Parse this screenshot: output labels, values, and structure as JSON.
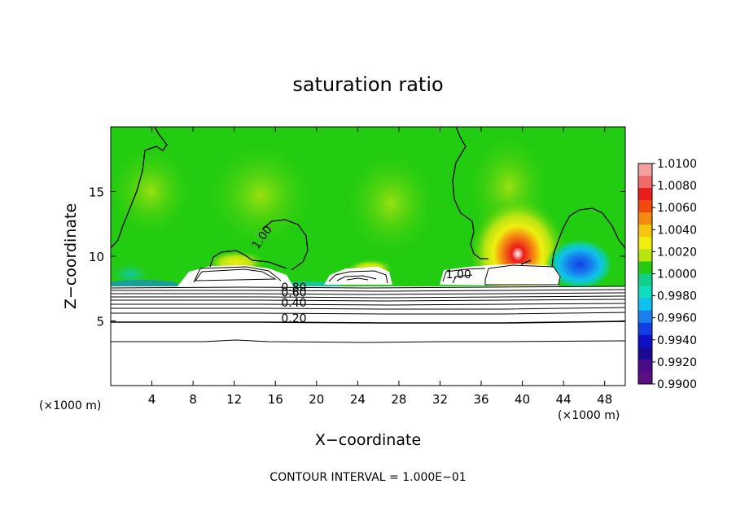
{
  "chart_data": {
    "type": "heatmap",
    "title": "saturation ratio",
    "xlabel": "X−coordinate",
    "ylabel": "Z−coordinate",
    "x_unit_left": "(×1000 m)",
    "x_unit_right": "(×1000 m)",
    "xlim": [
      0,
      50
    ],
    "ylim": [
      0,
      20
    ],
    "x_ticks": [
      4,
      8,
      12,
      16,
      20,
      24,
      28,
      32,
      36,
      40,
      44,
      48
    ],
    "y_ticks": [
      5,
      10,
      15
    ],
    "footer": "CONTOUR INTERVAL = 1.000E−01",
    "colorbar": {
      "ticks": [
        "1.0100",
        "1.0080",
        "1.0060",
        "1.0040",
        "1.0020",
        "1.0000",
        "0.9980",
        "0.9960",
        "0.9940",
        "0.9920",
        "0.9900"
      ],
      "colors": [
        "#f2a0a0",
        "#f06a6a",
        "#ea1c1c",
        "#f04a10",
        "#f58a10",
        "#f5c810",
        "#f0ee10",
        "#b8e410",
        "#22cc10",
        "#10d08a",
        "#10dcc0",
        "#10c0ee",
        "#1880ec",
        "#1040e4",
        "#1010c8",
        "#1a0a96",
        "#4a0a8a",
        "#5a1080"
      ]
    },
    "contour_labels": [
      {
        "text": "1.00",
        "x": 15.0,
        "y": 11.3
      },
      {
        "text": "1.00",
        "x": 33.8,
        "y": 8.3
      },
      {
        "text": "0.80",
        "x": 17.8,
        "y": 7.3
      },
      {
        "text": "0.60",
        "x": 17.8,
        "y": 6.9
      },
      {
        "text": "0.40",
        "x": 17.8,
        "y": 6.1
      },
      {
        "text": "0.20",
        "x": 17.8,
        "y": 4.9
      }
    ]
  }
}
